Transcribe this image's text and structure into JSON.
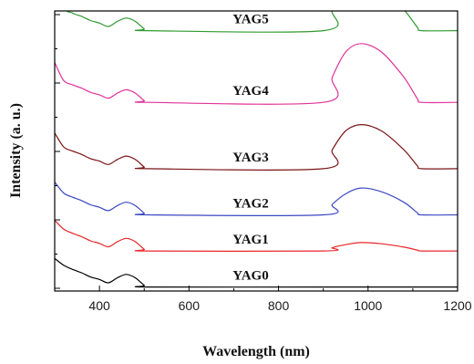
{
  "chart_data": {
    "type": "line",
    "xlabel": "Wavelength (nm)",
    "ylabel": "Intensity (a. u.)",
    "xlim": [
      300,
      1200
    ],
    "x_ticks": [
      400,
      600,
      800,
      1000,
      1200
    ],
    "y_ticks_labeled": false,
    "grid": false,
    "legend": "none",
    "series": [
      {
        "name": "YAG0",
        "color": "#000000",
        "offset": 0.03,
        "points": [
          [
            300,
            0.68
          ],
          [
            320,
            0.52
          ],
          [
            340,
            0.42
          ],
          [
            360,
            0.34
          ],
          [
            380,
            0.24
          ],
          [
            400,
            0.18
          ],
          [
            420,
            0.1
          ],
          [
            440,
            0.22
          ],
          [
            460,
            0.3
          ],
          [
            480,
            0.22
          ],
          [
            500,
            0.04
          ],
          [
            510,
            0
          ],
          [
            900,
            0
          ],
          [
            1200,
            0
          ]
        ]
      },
      {
        "name": "YAG1",
        "color": "#e8272a",
        "offset": 0.89,
        "points": [
          [
            300,
            0.73
          ],
          [
            320,
            0.52
          ],
          [
            340,
            0.42
          ],
          [
            360,
            0.34
          ],
          [
            380,
            0.24
          ],
          [
            400,
            0.18
          ],
          [
            420,
            0.1
          ],
          [
            440,
            0.22
          ],
          [
            460,
            0.3
          ],
          [
            480,
            0.22
          ],
          [
            500,
            0.04
          ],
          [
            510,
            0
          ],
          [
            900,
            0
          ],
          [
            920,
            0.08
          ],
          [
            950,
            0.15
          ],
          [
            985,
            0.2
          ],
          [
            1030,
            0.17
          ],
          [
            1080,
            0.09
          ],
          [
            1110,
            0.02
          ],
          [
            1120,
            0
          ],
          [
            1200,
            0
          ]
        ]
      },
      {
        "name": "YAG2",
        "color": "#3a48c2",
        "offset": 1.75,
        "points": [
          [
            300,
            0.78
          ],
          [
            320,
            0.52
          ],
          [
            340,
            0.42
          ],
          [
            360,
            0.34
          ],
          [
            380,
            0.24
          ],
          [
            400,
            0.18
          ],
          [
            420,
            0.1
          ],
          [
            440,
            0.22
          ],
          [
            460,
            0.3
          ],
          [
            480,
            0.22
          ],
          [
            500,
            0.04
          ],
          [
            510,
            0
          ],
          [
            900,
            0
          ],
          [
            920,
            0.25
          ],
          [
            950,
            0.5
          ],
          [
            985,
            0.64
          ],
          [
            1030,
            0.55
          ],
          [
            1080,
            0.3
          ],
          [
            1110,
            0.05
          ],
          [
            1120,
            0
          ],
          [
            1200,
            0
          ]
        ]
      },
      {
        "name": "YAG3",
        "color": "#7a1414",
        "offset": 2.85,
        "points": [
          [
            300,
            0.85
          ],
          [
            320,
            0.52
          ],
          [
            340,
            0.42
          ],
          [
            360,
            0.34
          ],
          [
            380,
            0.24
          ],
          [
            400,
            0.18
          ],
          [
            420,
            0.1
          ],
          [
            440,
            0.22
          ],
          [
            460,
            0.3
          ],
          [
            480,
            0.22
          ],
          [
            500,
            0.04
          ],
          [
            510,
            0
          ],
          [
            900,
            0
          ],
          [
            920,
            0.45
          ],
          [
            950,
            0.9
          ],
          [
            985,
            1.05
          ],
          [
            1030,
            0.9
          ],
          [
            1080,
            0.45
          ],
          [
            1110,
            0.07
          ],
          [
            1120,
            0
          ],
          [
            1200,
            0
          ]
        ]
      },
      {
        "name": "YAG4",
        "color": "#e0329a",
        "offset": 4.43,
        "points": [
          [
            300,
            0.95
          ],
          [
            320,
            0.52
          ],
          [
            340,
            0.42
          ],
          [
            360,
            0.34
          ],
          [
            380,
            0.24
          ],
          [
            400,
            0.18
          ],
          [
            420,
            0.1
          ],
          [
            440,
            0.22
          ],
          [
            460,
            0.3
          ],
          [
            480,
            0.22
          ],
          [
            500,
            0.04
          ],
          [
            510,
            0
          ],
          [
            900,
            0
          ],
          [
            920,
            0.6
          ],
          [
            950,
            1.2
          ],
          [
            985,
            1.4
          ],
          [
            1030,
            1.2
          ],
          [
            1080,
            0.6
          ],
          [
            1110,
            0.09
          ],
          [
            1120,
            0
          ],
          [
            1200,
            0
          ]
        ]
      },
      {
        "name": "YAG5",
        "color": "#2e9a2e",
        "offset": 6.14,
        "points": [
          [
            300,
            1.75
          ],
          [
            320,
            0.6
          ],
          [
            340,
            0.42
          ],
          [
            360,
            0.34
          ],
          [
            380,
            0.24
          ],
          [
            400,
            0.18
          ],
          [
            420,
            0.1
          ],
          [
            440,
            0.22
          ],
          [
            460,
            0.3
          ],
          [
            480,
            0.22
          ],
          [
            500,
            0.04
          ],
          [
            510,
            0
          ],
          [
            900,
            0
          ],
          [
            920,
            0.5
          ],
          [
            950,
            1.0
          ],
          [
            985,
            1.18
          ],
          [
            1030,
            1.02
          ],
          [
            1080,
            0.5
          ],
          [
            1110,
            0.08
          ],
          [
            1120,
            0
          ],
          [
            1200,
            0
          ]
        ]
      }
    ]
  }
}
